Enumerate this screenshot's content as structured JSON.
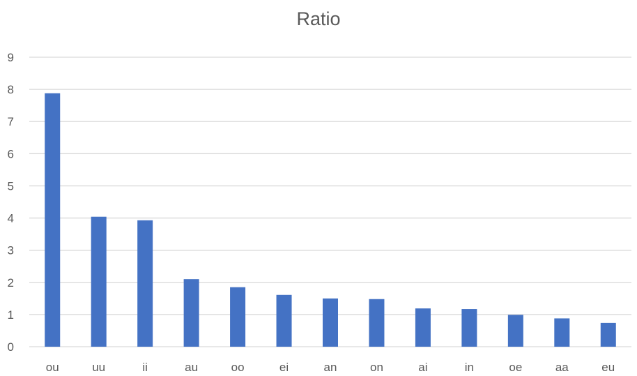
{
  "chart_data": {
    "type": "bar",
    "title": "Ratio",
    "xlabel": "",
    "ylabel": "",
    "categories": [
      "ou",
      "uu",
      "ii",
      "au",
      "oo",
      "ei",
      "an",
      "on",
      "ai",
      "in",
      "oe",
      "aa",
      "eu"
    ],
    "values": [
      7.88,
      4.04,
      3.93,
      2.1,
      1.85,
      1.61,
      1.5,
      1.48,
      1.19,
      1.17,
      0.99,
      0.88,
      0.74
    ],
    "ylim": [
      0,
      9
    ],
    "yticks": [
      0,
      1,
      2,
      3,
      4,
      5,
      6,
      7,
      8,
      9
    ],
    "grid": true,
    "legend": "none",
    "colors": {
      "bar": "#4472C4",
      "grid": "#D9D9D9",
      "text": "#595959"
    }
  }
}
